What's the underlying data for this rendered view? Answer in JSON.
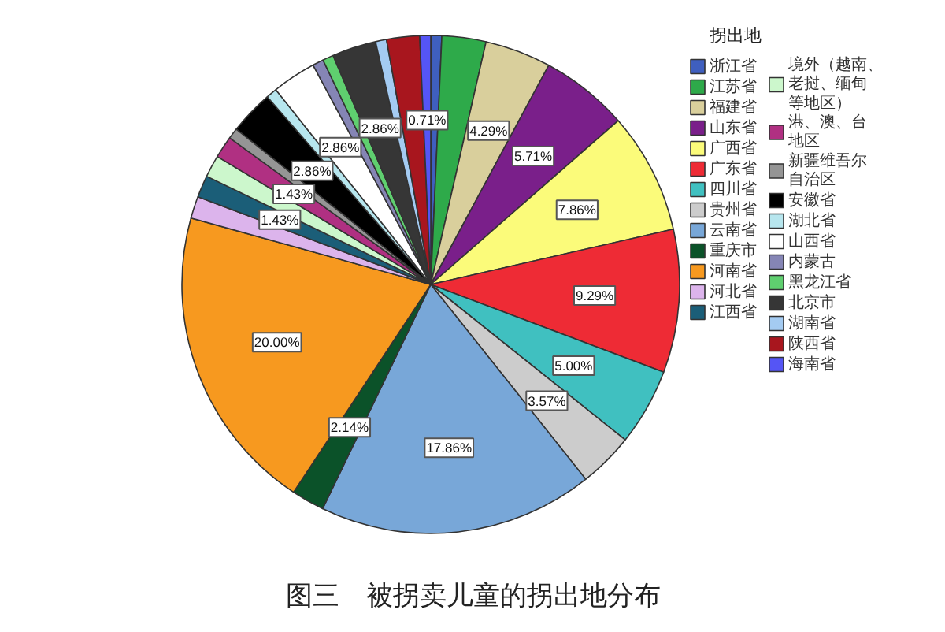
{
  "chart_data": {
    "type": "pie",
    "title": "图三　被拐卖儿童的拐出地分布",
    "legend_title": "拐出地",
    "legend": "right",
    "categories": [
      "浙江省",
      "江苏省",
      "福建省",
      "山东省",
      "广西省",
      "广东省",
      "四川省",
      "贵州省",
      "云南省",
      "重庆市",
      "河南省",
      "河北省",
      "江西省",
      "境外（越南、老挝、缅甸等地区）",
      "港、澳、台地区",
      "新疆维吾尔自治区",
      "安徽省",
      "湖北省",
      "山西省",
      "内蒙古",
      "黑龙江省",
      "北京市",
      "湖南省",
      "陕西省",
      "海南省"
    ],
    "values": [
      0.71,
      2.86,
      4.29,
      5.71,
      7.86,
      9.29,
      5.0,
      3.57,
      17.86,
      2.14,
      20.0,
      1.43,
      1.43,
      1.43,
      1.43,
      0.71,
      2.86,
      0.71,
      2.86,
      0.71,
      0.71,
      2.86,
      0.71,
      2.14,
      0.71
    ],
    "colors": [
      "#3f5fbf",
      "#2eaa4a",
      "#d9cf9c",
      "#7a1f8a",
      "#fbfb7a",
      "#ee2b35",
      "#40c0c0",
      "#cccccc",
      "#78a7d8",
      "#0b5229",
      "#f7991f",
      "#dcb4ec",
      "#1b5e78",
      "#ccf7cc",
      "#b03082",
      "#959595",
      "#000000",
      "#b7e6ee",
      "#ffffff",
      "#8585b5",
      "#5fcf6f",
      "#363636",
      "#a4cbf2",
      "#a8161e",
      "#5555f5"
    ],
    "value_labels": [
      null,
      null,
      "4.29%",
      "5.71%",
      "7.86%",
      "9.29%",
      "5.00%",
      "3.57%",
      "17.86%",
      "2.14%",
      "20.00%",
      null,
      "1.43%",
      null,
      "1.43%",
      null,
      "2.86%",
      null,
      "2.86%",
      null,
      null,
      "2.86%",
      null,
      null,
      "0.71%"
    ]
  }
}
